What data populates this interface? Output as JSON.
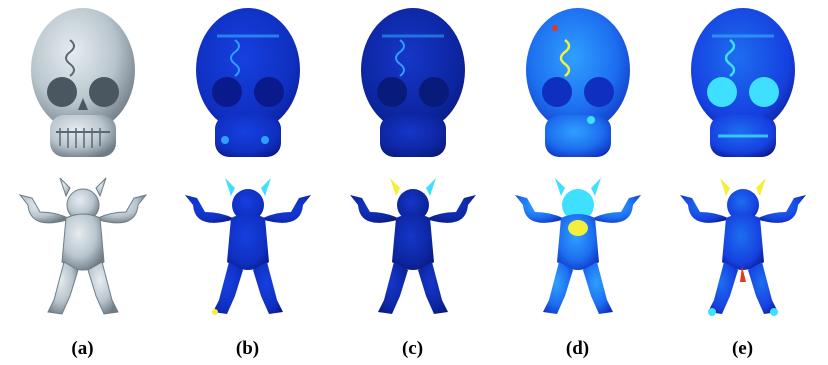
{
  "panels": [
    {
      "caption": "(a)",
      "style": "gray"
    },
    {
      "caption": "(b)",
      "style": "heat-low"
    },
    {
      "caption": "(c)",
      "style": "heat-lowest"
    },
    {
      "caption": "(d)",
      "style": "heat-high"
    },
    {
      "caption": "(e)",
      "style": "heat-mid"
    }
  ],
  "colors": {
    "gray_base": "#b8c4cc",
    "gray_shadow": "#6f7c86",
    "heat_deep": "#0a1a8c",
    "heat_blue": "#1640e0",
    "heat_light": "#2fa0ff",
    "heat_cyan": "#3fe0ff",
    "heat_yellow": "#f2f03a",
    "heat_red": "#e23a1a"
  }
}
